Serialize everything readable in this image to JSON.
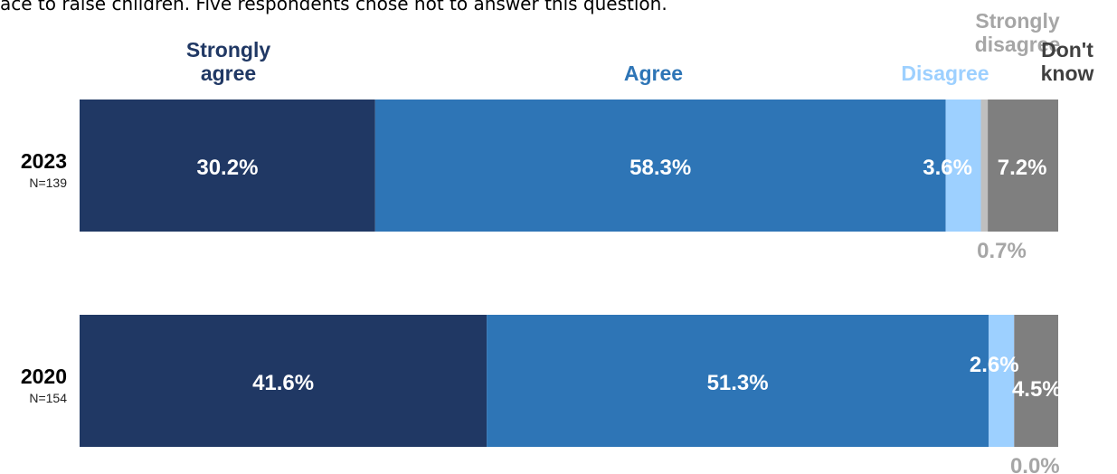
{
  "intro_text": "ace to raise children. Five respondents chose not to answer this question.",
  "chart_data": {
    "type": "bar",
    "orientation": "horizontal",
    "stacked": true,
    "percent": true,
    "categories": [
      "2023",
      "2020"
    ],
    "row_notes": [
      "N=139",
      "N=154"
    ],
    "series": [
      {
        "name": "Strongly agree",
        "color": "#203864",
        "values": [
          30.2,
          41.6
        ]
      },
      {
        "name": "Agree",
        "color": "#2e75b6",
        "values": [
          58.3,
          51.3
        ]
      },
      {
        "name": "Disagree",
        "color": "#9dd0ff",
        "values": [
          3.6,
          2.6
        ]
      },
      {
        "name": "Strongly disagree",
        "color": "#bfbfbf",
        "values": [
          0.7,
          0.0
        ]
      },
      {
        "name": "Don't know",
        "color": "#7f7f7f",
        "values": [
          7.2,
          4.5
        ]
      }
    ],
    "data_labels": {
      "2023": [
        "30.2%",
        "58.3%",
        "3.6%",
        "0.7%",
        "7.2%"
      ],
      "2020": [
        "41.6%",
        "51.3%",
        "2.6%",
        "0.0%",
        "4.5%"
      ]
    },
    "legend": {
      "placement": "top",
      "items": [
        {
          "text": "Strongly\nagree",
          "color": "#203864"
        },
        {
          "text": "Agree",
          "color": "#2e75b6"
        },
        {
          "text": "Disagree",
          "color": "#9dd0ff"
        },
        {
          "text": "Strongly\ndisagree",
          "color": "#a6a6a6"
        },
        {
          "text": "Don't\nknow",
          "color": "#404040"
        }
      ]
    },
    "title": "",
    "xlabel": "",
    "ylabel": "",
    "xlim": [
      0,
      100
    ]
  }
}
